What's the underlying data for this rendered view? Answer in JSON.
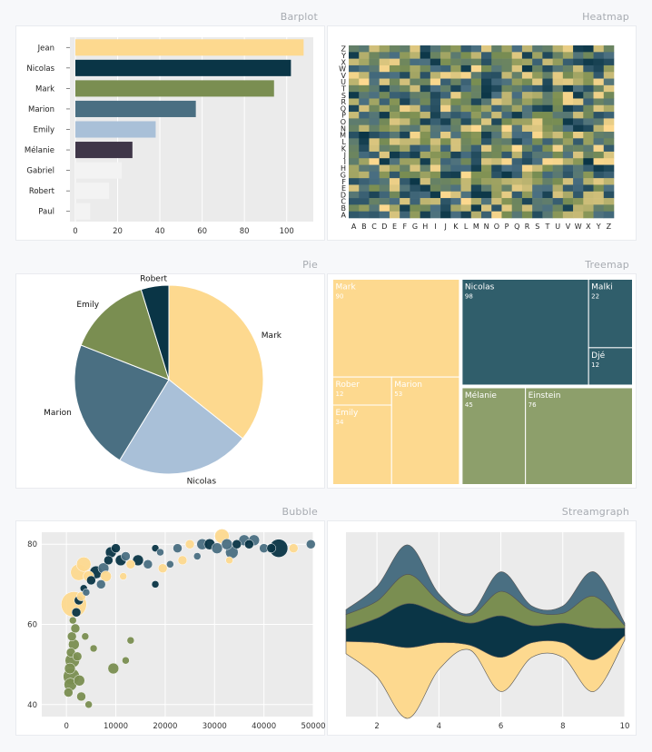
{
  "palette": {
    "yellow": "#fdd98f",
    "navy": "#0a3546",
    "olive": "#7a8e51",
    "steel": "#4a6f82",
    "lightblue": "#a9c0d8",
    "purple": "#3f3648",
    "teal": "#305e6b",
    "sage": "#8d9f6b",
    "white": "#f3f3f3"
  },
  "panels": {
    "barplot": {
      "title": "Barplot"
    },
    "heatmap": {
      "title": "Heatmap"
    },
    "pie": {
      "title": "Pie"
    },
    "treemap": {
      "title": "Treemap"
    },
    "bubble": {
      "title": "Bubble"
    },
    "streamgraph": {
      "title": "Streamgraph"
    }
  },
  "chart_data": [
    {
      "id": "barplot",
      "type": "bar",
      "orientation": "horizontal",
      "categories": [
        "Jean",
        "Nicolas",
        "Mark",
        "Marion",
        "Emily",
        "Mélanie",
        "Gabriel",
        "Robert",
        "Paul"
      ],
      "values": [
        108,
        102,
        94,
        57,
        38,
        27,
        22,
        16,
        7
      ],
      "colors": [
        "yellow",
        "navy",
        "olive",
        "steel",
        "lightblue",
        "purple",
        "white",
        "white",
        "white"
      ],
      "xlim": [
        0,
        110
      ],
      "xticks": [
        0,
        20,
        40,
        60,
        80,
        100
      ],
      "grid": true
    },
    {
      "id": "heatmap",
      "type": "heatmap",
      "x_labels": [
        "A",
        "B",
        "C",
        "D",
        "E",
        "F",
        "G",
        "H",
        "I",
        "J",
        "K",
        "L",
        "M",
        "N",
        "O",
        "P",
        "Q",
        "R",
        "S",
        "T",
        "U",
        "V",
        "W",
        "X",
        "Y",
        "Z"
      ],
      "y_labels": [
        "A",
        "B",
        "C",
        "D",
        "E",
        "F",
        "G",
        "H",
        "I",
        "J",
        "K",
        "L",
        "M",
        "N",
        "O",
        "P",
        "Q",
        "R",
        "S",
        "T",
        "U",
        "V",
        "W",
        "X",
        "Y",
        "Z"
      ],
      "color_scale": [
        "yellow",
        "olive",
        "steel",
        "navy"
      ]
    },
    {
      "id": "pie",
      "type": "pie",
      "slices": [
        {
          "label": "Mark",
          "value": 90,
          "color": "yellow"
        },
        {
          "label": "Nicolas",
          "value": 58,
          "color": "lightblue"
        },
        {
          "label": "Marion",
          "value": 56,
          "color": "steel"
        },
        {
          "label": "Emily",
          "value": 36,
          "color": "olive"
        },
        {
          "label": "Robert",
          "value": 12,
          "color": "navy"
        }
      ]
    },
    {
      "id": "treemap",
      "type": "treemap",
      "groups": [
        {
          "color": "yellow",
          "items": [
            {
              "label": "Mark",
              "value": 90
            },
            {
              "label": "Rober",
              "value": 12
            },
            {
              "label": "Emily",
              "value": 34
            },
            {
              "label": "Marion",
              "value": 53
            }
          ]
        },
        {
          "color": "teal",
          "items": [
            {
              "label": "Nicolas",
              "value": 98
            },
            {
              "label": "Malki",
              "value": 22
            },
            {
              "label": "Djé",
              "value": 12
            }
          ]
        },
        {
          "color": "sage",
          "items": [
            {
              "label": "Mélanie",
              "value": 45
            },
            {
              "label": "Einstein",
              "value": 76
            }
          ]
        }
      ]
    },
    {
      "id": "bubble",
      "type": "scatter",
      "xlim": [
        -5000,
        50000
      ],
      "ylim": [
        37,
        83
      ],
      "xticks": [
        0,
        10000,
        20000,
        30000,
        40000,
        50000
      ],
      "yticks": [
        40,
        60,
        80
      ],
      "grid": true,
      "points": [
        {
          "x": 400,
          "y": 43,
          "r": 5,
          "c": "olive"
        },
        {
          "x": 800,
          "y": 45,
          "r": 7,
          "c": "olive"
        },
        {
          "x": 1000,
          "y": 47,
          "r": 9,
          "c": "olive"
        },
        {
          "x": 700,
          "y": 49,
          "r": 6,
          "c": "olive"
        },
        {
          "x": 1200,
          "y": 51,
          "r": 8,
          "c": "olive"
        },
        {
          "x": 900,
          "y": 53,
          "r": 5,
          "c": "olive"
        },
        {
          "x": 1500,
          "y": 55,
          "r": 6,
          "c": "olive"
        },
        {
          "x": 1100,
          "y": 57,
          "r": 5,
          "c": "olive"
        },
        {
          "x": 1800,
          "y": 59,
          "r": 5,
          "c": "olive"
        },
        {
          "x": 1300,
          "y": 61,
          "r": 4,
          "c": "olive"
        },
        {
          "x": 2200,
          "y": 52,
          "r": 5,
          "c": "olive"
        },
        {
          "x": 2600,
          "y": 46,
          "r": 6,
          "c": "olive"
        },
        {
          "x": 3000,
          "y": 42,
          "r": 5,
          "c": "olive"
        },
        {
          "x": 4500,
          "y": 40,
          "r": 4,
          "c": "olive"
        },
        {
          "x": 5500,
          "y": 54,
          "r": 4,
          "c": "olive"
        },
        {
          "x": 3800,
          "y": 57,
          "r": 4,
          "c": "olive"
        },
        {
          "x": 9500,
          "y": 49,
          "r": 6,
          "c": "olive"
        },
        {
          "x": 12000,
          "y": 51,
          "r": 4,
          "c": "olive"
        },
        {
          "x": 13000,
          "y": 56,
          "r": 4,
          "c": "olive"
        },
        {
          "x": 2000,
          "y": 63,
          "r": 5,
          "c": "navy"
        },
        {
          "x": 2500,
          "y": 66,
          "r": 5,
          "c": "navy"
        },
        {
          "x": 3500,
          "y": 69,
          "r": 4,
          "c": "navy"
        },
        {
          "x": 1500,
          "y": 65,
          "r": 14,
          "c": "yellow"
        },
        {
          "x": 2500,
          "y": 73,
          "r": 9,
          "c": "yellow"
        },
        {
          "x": 3500,
          "y": 75,
          "r": 8,
          "c": "yellow"
        },
        {
          "x": 4500,
          "y": 72,
          "r": 6,
          "c": "yellow"
        },
        {
          "x": 6000,
          "y": 73,
          "r": 7,
          "c": "navy"
        },
        {
          "x": 7500,
          "y": 74,
          "r": 6,
          "c": "steel"
        },
        {
          "x": 8500,
          "y": 76,
          "r": 5,
          "c": "navy"
        },
        {
          "x": 9000,
          "y": 78,
          "r": 6,
          "c": "navy"
        },
        {
          "x": 10000,
          "y": 79,
          "r": 5,
          "c": "navy"
        },
        {
          "x": 11000,
          "y": 76,
          "r": 6,
          "c": "navy"
        },
        {
          "x": 12000,
          "y": 77,
          "r": 5,
          "c": "steel"
        },
        {
          "x": 13000,
          "y": 75,
          "r": 5,
          "c": "yellow"
        },
        {
          "x": 14500,
          "y": 76,
          "r": 6,
          "c": "navy"
        },
        {
          "x": 8000,
          "y": 72,
          "r": 6,
          "c": "yellow"
        },
        {
          "x": 7000,
          "y": 70,
          "r": 5,
          "c": "steel"
        },
        {
          "x": 11500,
          "y": 72,
          "r": 4,
          "c": "yellow"
        },
        {
          "x": 16500,
          "y": 75,
          "r": 5,
          "c": "steel"
        },
        {
          "x": 18000,
          "y": 79,
          "r": 4,
          "c": "navy"
        },
        {
          "x": 19000,
          "y": 78,
          "r": 4,
          "c": "steel"
        },
        {
          "x": 19500,
          "y": 74,
          "r": 5,
          "c": "yellow"
        },
        {
          "x": 18000,
          "y": 70,
          "r": 4,
          "c": "navy"
        },
        {
          "x": 21000,
          "y": 75,
          "r": 4,
          "c": "steel"
        },
        {
          "x": 22500,
          "y": 79,
          "r": 5,
          "c": "steel"
        },
        {
          "x": 23500,
          "y": 76,
          "r": 5,
          "c": "yellow"
        },
        {
          "x": 25000,
          "y": 80,
          "r": 5,
          "c": "yellow"
        },
        {
          "x": 26500,
          "y": 77,
          "r": 4,
          "c": "steel"
        },
        {
          "x": 27500,
          "y": 80,
          "r": 6,
          "c": "steel"
        },
        {
          "x": 29000,
          "y": 80,
          "r": 6,
          "c": "navy"
        },
        {
          "x": 30500,
          "y": 79,
          "r": 6,
          "c": "steel"
        },
        {
          "x": 31500,
          "y": 82,
          "r": 8,
          "c": "yellow"
        },
        {
          "x": 32500,
          "y": 80,
          "r": 6,
          "c": "steel"
        },
        {
          "x": 33000,
          "y": 76,
          "r": 4,
          "c": "yellow"
        },
        {
          "x": 33500,
          "y": 78,
          "r": 7,
          "c": "steel"
        },
        {
          "x": 34500,
          "y": 80,
          "r": 5,
          "c": "navy"
        },
        {
          "x": 36000,
          "y": 81,
          "r": 6,
          "c": "steel"
        },
        {
          "x": 37000,
          "y": 80,
          "r": 5,
          "c": "navy"
        },
        {
          "x": 38000,
          "y": 81,
          "r": 6,
          "c": "steel"
        },
        {
          "x": 40000,
          "y": 79,
          "r": 5,
          "c": "steel"
        },
        {
          "x": 41500,
          "y": 79,
          "r": 5,
          "c": "navy"
        },
        {
          "x": 43000,
          "y": 79,
          "r": 10,
          "c": "navy"
        },
        {
          "x": 46000,
          "y": 79,
          "r": 5,
          "c": "yellow"
        },
        {
          "x": 49500,
          "y": 80,
          "r": 5,
          "c": "steel"
        },
        {
          "x": 5000,
          "y": 71,
          "r": 5,
          "c": "navy"
        },
        {
          "x": 4000,
          "y": 68,
          "r": 4,
          "c": "steel"
        },
        {
          "x": 3000,
          "y": 67,
          "r": 5,
          "c": "yellow"
        }
      ]
    },
    {
      "id": "streamgraph",
      "type": "area",
      "stacking": "streamgraph",
      "x": [
        1,
        2,
        3,
        4,
        5,
        6,
        7,
        8,
        9,
        10
      ],
      "xticks": [
        2,
        4,
        6,
        8,
        10
      ],
      "grid": true,
      "series": [
        {
          "color": "yellow",
          "values": [
            5,
            14,
            29,
            11,
            2,
            14,
            6,
            6,
            13,
            2
          ]
        },
        {
          "color": "navy",
          "values": [
            5,
            10,
            18,
            12,
            9,
            17,
            7,
            8,
            13,
            3
          ]
        },
        {
          "color": "olive",
          "values": [
            6,
            7,
            12,
            5,
            3,
            10,
            6,
            4,
            13,
            1
          ]
        },
        {
          "color": "steel",
          "values": [
            2,
            6,
            12,
            3,
            1,
            8,
            2,
            3,
            10,
            1
          ]
        }
      ]
    }
  ]
}
